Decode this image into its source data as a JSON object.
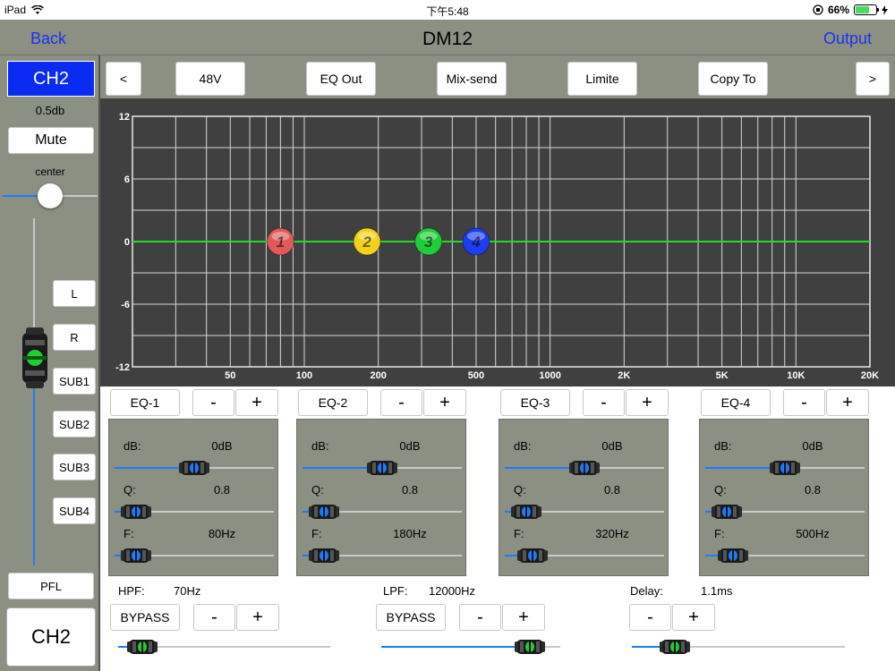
{
  "status_bar": {
    "device": "iPad",
    "time": "下午5:48",
    "battery": "66%",
    "battery_level": 0.66
  },
  "nav": {
    "back_label": "Back",
    "title": "DM12",
    "output_label": "Output"
  },
  "channel": {
    "badge": "CH2",
    "gain": "0.5db",
    "mute_label": "Mute",
    "pan_label": "center",
    "routes": [
      "L",
      "R",
      "SUB1",
      "SUB2",
      "SUB3",
      "SUB4"
    ],
    "pfl_label": "PFL",
    "name": "CH2",
    "pan_position": 0.5,
    "fader_level": 0.55
  },
  "toolbar": {
    "prev_label": "<",
    "phantom_label": "48V",
    "eq_out_label": "EQ Out",
    "mix_send_label": "Mix-send",
    "limite_label": "Limite",
    "copy_to_label": "Copy To",
    "next_label": ">"
  },
  "graph": {
    "y_ticks": [
      "12",
      "6",
      "0",
      "-6",
      "-12"
    ],
    "x_ticks": [
      "50",
      "100",
      "200",
      "500",
      "1000",
      "2K",
      "5K",
      "10K",
      "20K"
    ],
    "curve_color": "#22dd22",
    "points": [
      {
        "label": "1",
        "freq_hz": 80,
        "gain_db": 0,
        "color": "#e05a5a"
      },
      {
        "label": "2",
        "freq_hz": 180,
        "gain_db": 0,
        "color": "#f2d21a"
      },
      {
        "label": "3",
        "freq_hz": 320,
        "gain_db": 0,
        "color": "#1fcc3a"
      },
      {
        "label": "4",
        "freq_hz": 500,
        "gain_db": 0,
        "color": "#1c3df0"
      }
    ]
  },
  "bands": [
    {
      "name": "EQ-1",
      "minus": "-",
      "plus": "+",
      "db_label": "dB:",
      "db_value": "0dB",
      "q_label": "Q:",
      "q_value": "0.8",
      "f_label": "F:",
      "f_value": "80Hz",
      "db_pos": 0.5,
      "q_pos": 0.05,
      "f_pos": 0.05
    },
    {
      "name": "EQ-2",
      "minus": "-",
      "plus": "+",
      "db_label": "dB:",
      "db_value": "0dB",
      "q_label": "Q:",
      "q_value": "0.8",
      "f_label": "F:",
      "f_value": "180Hz",
      "db_pos": 0.5,
      "q_pos": 0.05,
      "f_pos": 0.05
    },
    {
      "name": "EQ-3",
      "minus": "-",
      "plus": "+",
      "db_label": "dB:",
      "db_value": "0dB",
      "q_label": "Q:",
      "q_value": "0.8",
      "f_label": "F:",
      "f_value": "320Hz",
      "db_pos": 0.5,
      "q_pos": 0.05,
      "f_pos": 0.1
    },
    {
      "name": "EQ-4",
      "minus": "-",
      "plus": "+",
      "db_label": "dB:",
      "db_value": "0dB",
      "q_label": "Q:",
      "q_value": "0.8",
      "f_label": "F:",
      "f_value": "500Hz",
      "db_pos": 0.5,
      "q_pos": 0.05,
      "f_pos": 0.1
    }
  ],
  "filters": {
    "hpf_label": "HPF:",
    "hpf_value": "70Hz",
    "hpf_bypass": "BYPASS",
    "lpf_label": "LPF:",
    "lpf_value": "12000Hz",
    "lpf_bypass": "BYPASS",
    "delay_label": "Delay:",
    "delay_value": "1.1ms",
    "minus": "-",
    "plus": "+",
    "hpf_pos": 0.05,
    "lpf_pos": 0.9,
    "delay_pos": 0.15
  },
  "colors": {
    "panel": "#8b9083",
    "accent_blue": "#1a32f0",
    "badge_blue": "#0a2bf2",
    "graph_bg": "#404040",
    "slider_blue": "#1a7bff",
    "knob_blue": "#1a7bff",
    "knob_green": "#22cc33"
  }
}
